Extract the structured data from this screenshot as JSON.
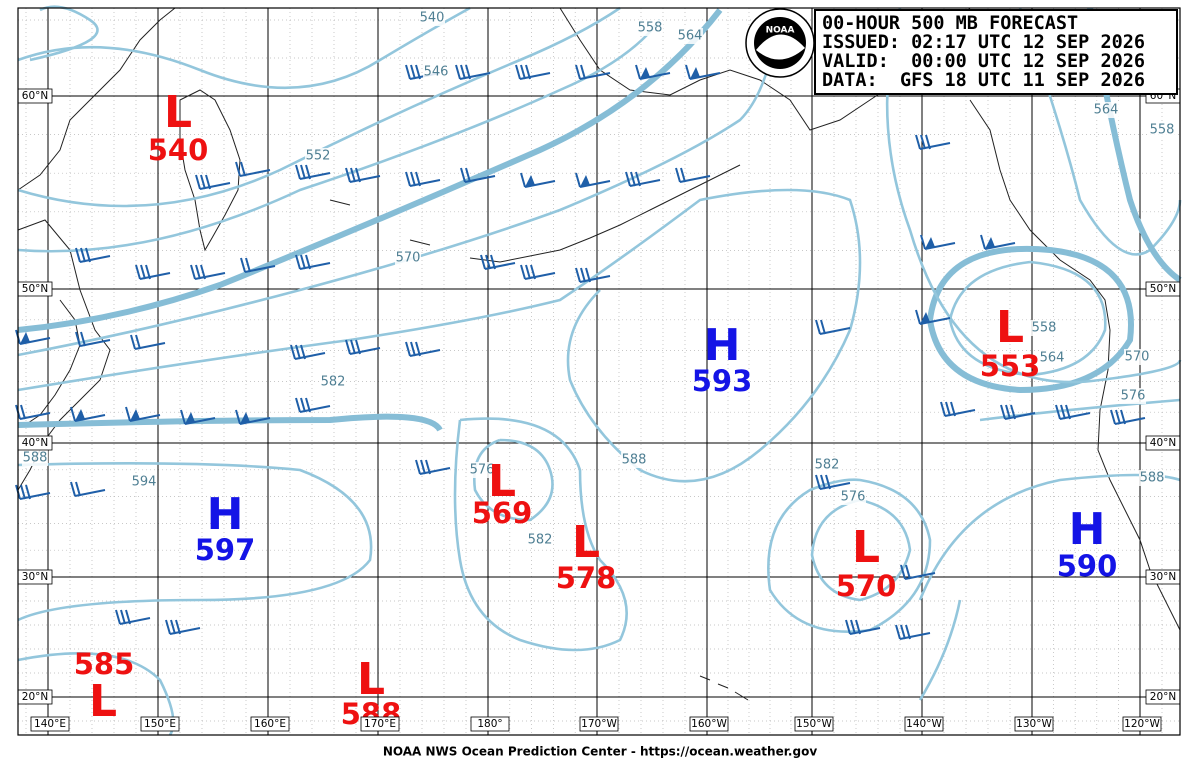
{
  "header": {
    "lines": [
      "00-HOUR 500 MB FORECAST",
      "ISSUED: 02:17 UTC 12 SEP 2026",
      "VALID:  00:00 UTC 12 SEP 2026",
      "DATA:  GFS 18 UTC 11 SEP 2026"
    ]
  },
  "logo": {
    "label": "NOAA"
  },
  "centers": [
    {
      "letter": "L",
      "value": "540"
    },
    {
      "letter": "L",
      "value": "569"
    },
    {
      "letter": "L",
      "value": "578"
    },
    {
      "letter": "L",
      "value": "570"
    },
    {
      "letter": "L",
      "value": "553"
    },
    {
      "letter": "L",
      "value": "585"
    },
    {
      "letter": "L",
      "value": "588"
    },
    {
      "letter": "H",
      "value": "593"
    },
    {
      "letter": "H",
      "value": "597"
    },
    {
      "letter": "H",
      "value": "590"
    }
  ],
  "contour_labels": [
    "540",
    "546",
    "552",
    "558",
    "564",
    "570",
    "582",
    "594",
    "588",
    "576",
    "582",
    "576",
    "570",
    "576",
    "588",
    "558",
    "564",
    "558",
    "564",
    "582",
    "588"
  ],
  "lat_labels": [
    "60°N",
    "50°N",
    "40°N",
    "30°N",
    "20°N"
  ],
  "lon_labels": [
    "140°E",
    "150°E",
    "160°E",
    "170°E",
    "180°",
    "170°W",
    "160°W",
    "150°W",
    "140°W",
    "130°W",
    "120°W"
  ],
  "footer": "NOAA NWS Ocean Prediction Center - https://ocean.weather.gov"
}
